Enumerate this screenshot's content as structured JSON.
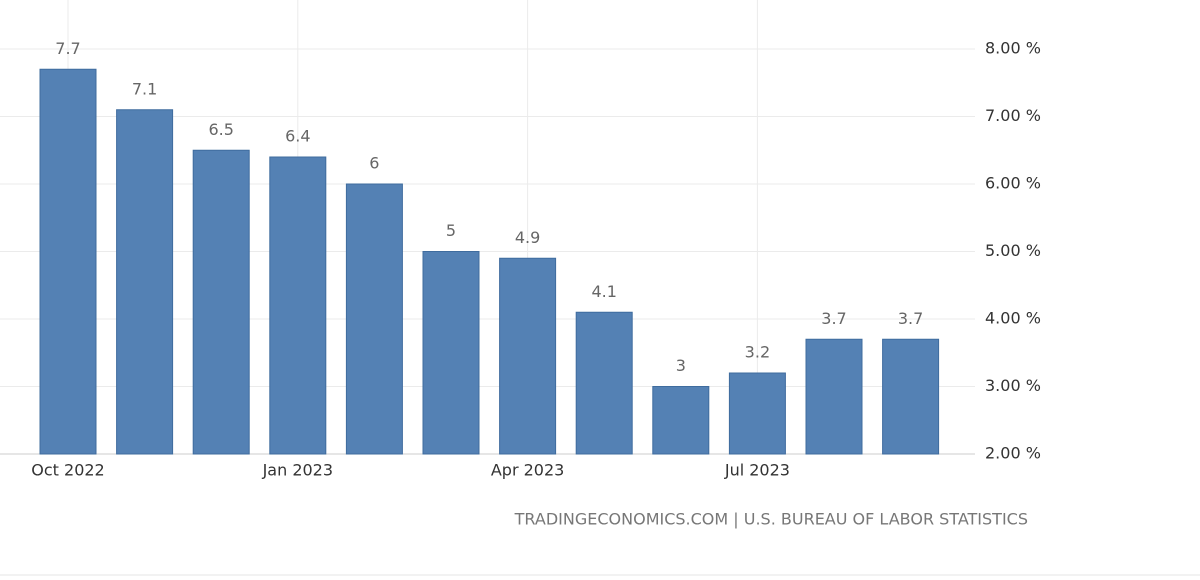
{
  "chart_data": {
    "type": "bar",
    "categories": [
      "Oct 2022",
      null,
      null,
      "Jan 2023",
      null,
      null,
      "Apr 2023",
      null,
      null,
      "Jul 2023",
      null,
      null
    ],
    "values": [
      7.7,
      7.1,
      6.5,
      6.4,
      6,
      5,
      4.9,
      4.1,
      3,
      3.2,
      3.7,
      3.7
    ],
    "color": "#5481b4",
    "ylim": [
      2,
      8
    ],
    "yticks": [
      {
        "value": 2,
        "label": "2.00 %"
      },
      {
        "value": 3,
        "label": "3.00 %"
      },
      {
        "value": 4,
        "label": "4.00 %"
      },
      {
        "value": 5,
        "label": "5.00 %"
      },
      {
        "value": 6,
        "label": "6.00 %"
      },
      {
        "value": 7,
        "label": "7.00 %"
      },
      {
        "value": 8,
        "label": "8.00 %"
      }
    ],
    "grid": true,
    "source": "TRADINGECONOMICS.COM | U.S. BUREAU OF LABOR STATISTICS"
  }
}
